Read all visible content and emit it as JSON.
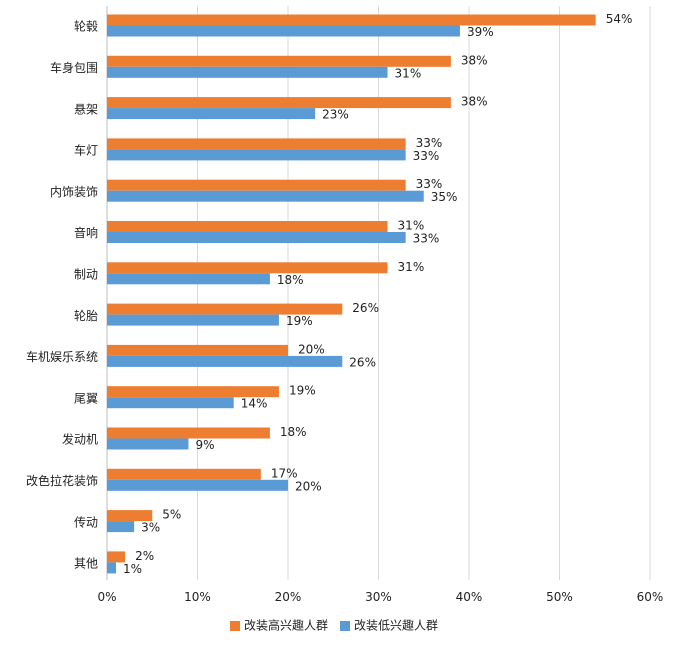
{
  "chart_data": {
    "type": "bar",
    "orientation": "horizontal",
    "categories": [
      "轮毂",
      "车身包围",
      "悬架",
      "车灯",
      "内饰装饰",
      "音响",
      "制动",
      "轮胎",
      "车机娱乐系统",
      "尾翼",
      "发动机",
      "改色拉花装饰",
      "传动",
      "其他"
    ],
    "series": [
      {
        "name": "改装高兴趣人群",
        "color": "#ED7D31",
        "values": [
          54,
          38,
          38,
          33,
          33,
          31,
          31,
          26,
          20,
          19,
          18,
          17,
          5,
          2
        ]
      },
      {
        "name": "改装低兴趣人群",
        "color": "#5B9BD5",
        "values": [
          39,
          31,
          23,
          33,
          35,
          33,
          18,
          19,
          26,
          14,
          9,
          20,
          3,
          1
        ]
      }
    ],
    "xlim": [
      0,
      60
    ],
    "xticks": [
      "0%",
      "10%",
      "20%",
      "30%",
      "40%",
      "50%",
      "60%"
    ],
    "value_suffix": "%",
    "grid": "vertical",
    "legend_position": "bottom"
  }
}
